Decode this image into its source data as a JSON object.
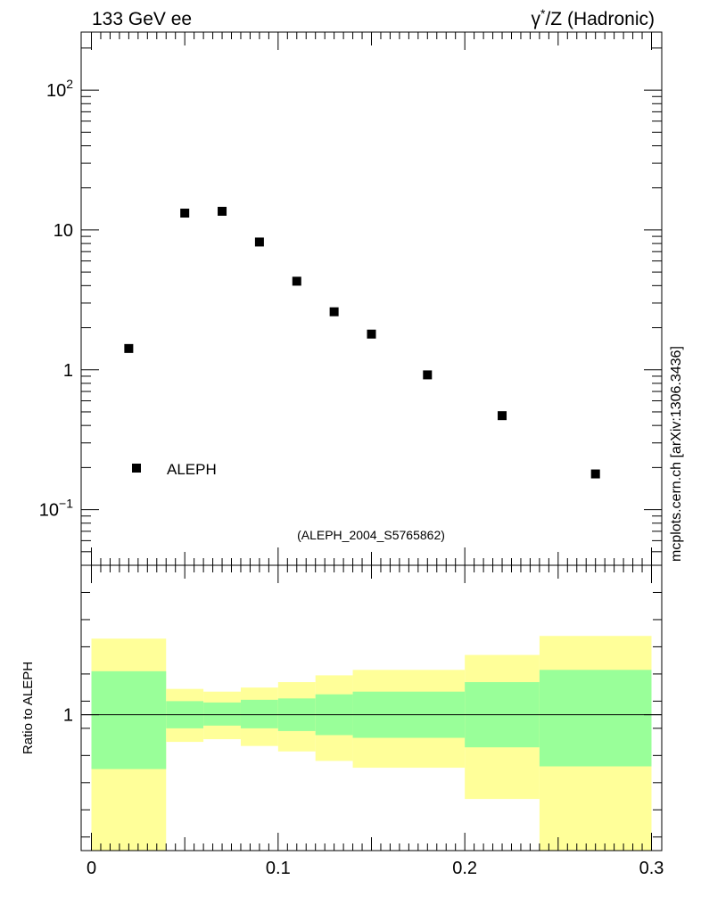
{
  "header": {
    "left_title": "133 GeV ee",
    "right_title_sym": "γ",
    "right_title_sup": "*",
    "right_title_rest": "/Z (Hadronic)"
  },
  "side_label": "mcplots.cern.ch [arXiv:1306.3436]",
  "analysis_id": "(ALEPH_2004_S5765862)",
  "legend": {
    "label": "ALEPH"
  },
  "colors": {
    "marker": "#000000",
    "band_inner": "#99ff99",
    "band_outer": "#ffff99",
    "watermark": "#999999"
  },
  "chart_data": [
    {
      "type": "scatter",
      "scale_y": "log",
      "xlim": [
        -0.0055,
        0.3055
      ],
      "ylim": [
        0.04,
        260
      ],
      "y_ticks": [
        {
          "value": 0.1,
          "base": "10",
          "exp": "−1"
        },
        {
          "value": 1,
          "base": "1",
          "exp": ""
        },
        {
          "value": 10,
          "base": "10",
          "exp": ""
        },
        {
          "value": 100,
          "base": "10",
          "exp": "2"
        }
      ],
      "series": [
        {
          "name": "ALEPH",
          "x": [
            0.02,
            0.05,
            0.07,
            0.09,
            0.11,
            0.13,
            0.15,
            0.18,
            0.22,
            0.27
          ],
          "y": [
            1.42,
            13.2,
            13.6,
            8.2,
            4.3,
            2.6,
            1.8,
            0.92,
            0.47,
            0.18
          ]
        }
      ]
    },
    {
      "type": "area",
      "ylabel": "Ratio to ALEPH",
      "xlim": [
        -0.0055,
        0.3055
      ],
      "ylim": [
        0.5,
        1.55
      ],
      "x_ticks": [
        {
          "value": 0,
          "label": "0"
        },
        {
          "value": 0.1,
          "label": "0.1"
        },
        {
          "value": 0.2,
          "label": "0.2"
        },
        {
          "value": 0.3,
          "label": "0.3"
        }
      ],
      "y_ticks": [
        {
          "value": 1,
          "label": "1"
        }
      ],
      "reference_line": 1,
      "bins": [
        {
          "x0": 0.0,
          "x1": 0.04,
          "inner": [
            0.8,
            1.16
          ],
          "outer": [
            0.5,
            1.28
          ]
        },
        {
          "x0": 0.04,
          "x1": 0.06,
          "inner": [
            0.95,
            1.05
          ],
          "outer": [
            0.9,
            1.095
          ]
        },
        {
          "x0": 0.06,
          "x1": 0.08,
          "inner": [
            0.96,
            1.045
          ],
          "outer": [
            0.91,
            1.085
          ]
        },
        {
          "x0": 0.08,
          "x1": 0.1,
          "inner": [
            0.95,
            1.055
          ],
          "outer": [
            0.885,
            1.1
          ]
        },
        {
          "x0": 0.1,
          "x1": 0.12,
          "inner": [
            0.94,
            1.06
          ],
          "outer": [
            0.865,
            1.12
          ]
        },
        {
          "x0": 0.12,
          "x1": 0.14,
          "inner": [
            0.925,
            1.075
          ],
          "outer": [
            0.83,
            1.145
          ]
        },
        {
          "x0": 0.14,
          "x1": 0.2,
          "inner": [
            0.915,
            1.085
          ],
          "outer": [
            0.805,
            1.165
          ]
        },
        {
          "x0": 0.2,
          "x1": 0.24,
          "inner": [
            0.88,
            1.12
          ],
          "outer": [
            0.69,
            1.22
          ]
        },
        {
          "x0": 0.24,
          "x1": 0.3,
          "inner": [
            0.81,
            1.165
          ],
          "outer": [
            0.5,
            1.29
          ]
        }
      ]
    }
  ]
}
